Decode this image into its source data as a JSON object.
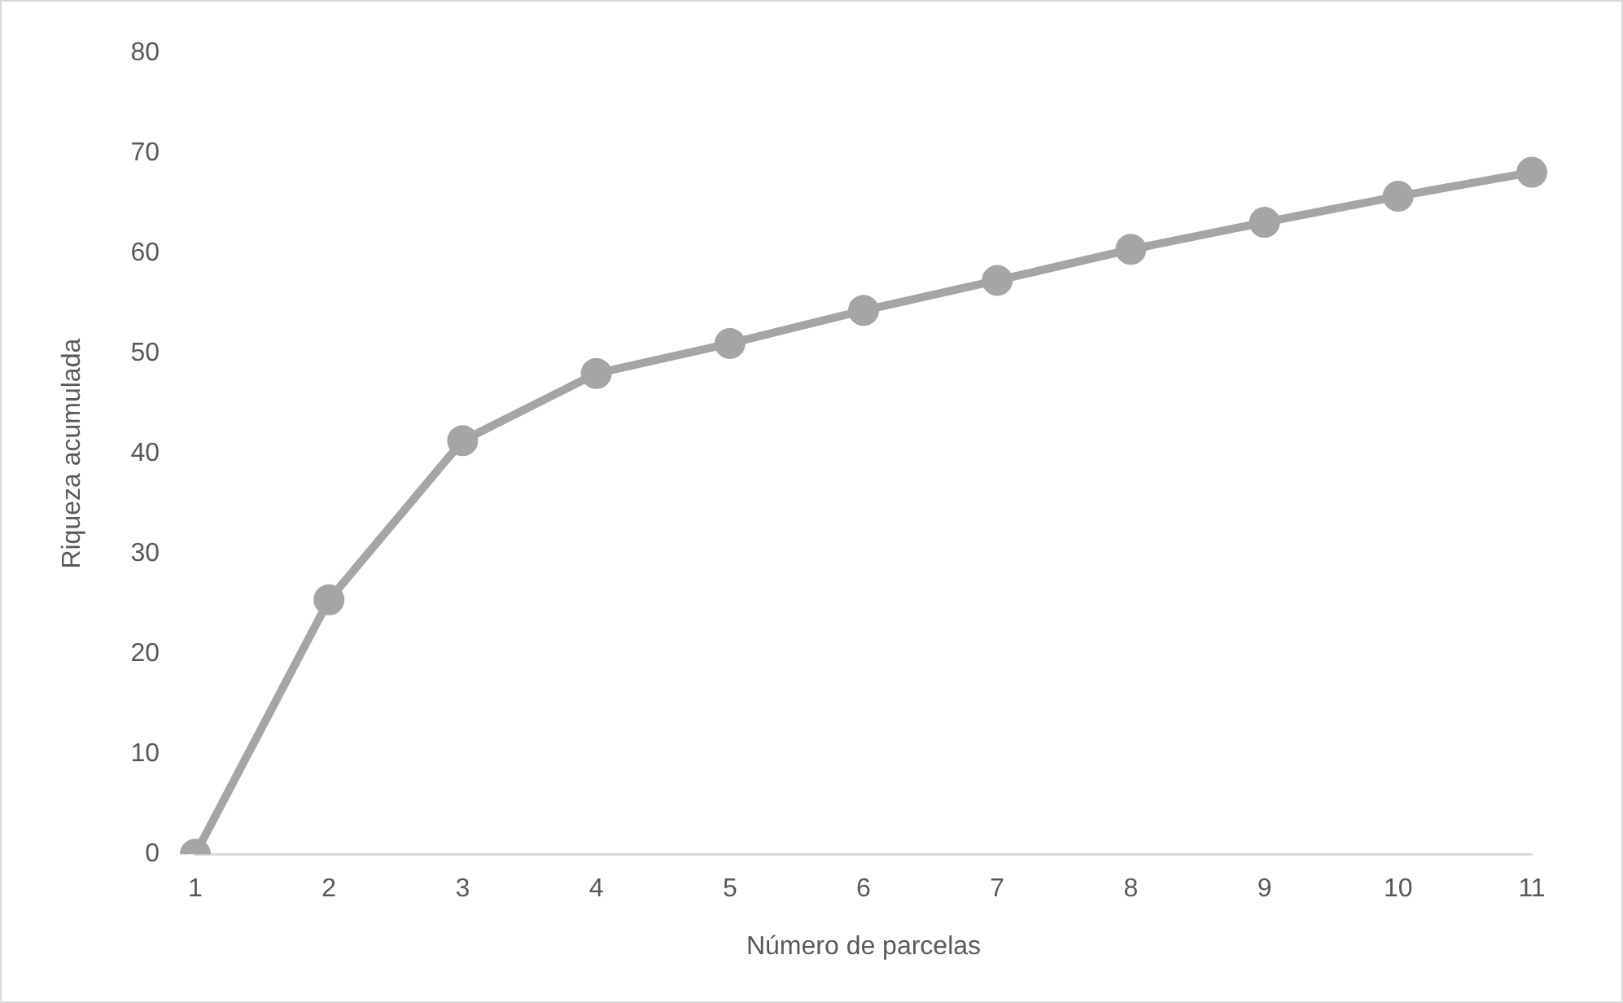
{
  "chart_data": {
    "type": "line",
    "xlabel": "Número de parcelas",
    "ylabel": "Riqueza acumulada",
    "categories": [
      "1",
      "2",
      "3",
      "4",
      "5",
      "6",
      "7",
      "8",
      "9",
      "10",
      "11"
    ],
    "series": [
      {
        "color": "#a5a5a5",
        "values": [
          0,
          25.4,
          41.3,
          48.0,
          51.0,
          54.3,
          57.3,
          60.4,
          63.1,
          65.7,
          68.1
        ]
      }
    ],
    "ylim": [
      0,
      80
    ],
    "yticks": [
      0,
      10,
      20,
      30,
      40,
      50,
      60,
      70,
      80
    ],
    "grid": false,
    "legend": false,
    "marker": "circle",
    "line_style": "solid"
  }
}
